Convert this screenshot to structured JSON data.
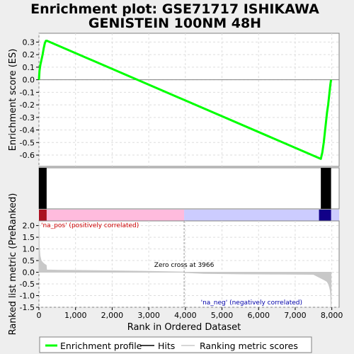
{
  "title_line1": "Enrichment plot: GSE71717 ISHIKAWA",
  "title_line2": "GENISTEIN 100NM 48H",
  "colors": {
    "es_line": "#00ff00",
    "hits": "#000000",
    "pos_band": "#ffbbdd",
    "neg_band": "#ccccff",
    "metric_fill": "#c8c8c8",
    "pos_label": "#cc0000",
    "neg_label": "#0000aa"
  },
  "chart_data": [
    {
      "type": "line",
      "ylabel": "Enrichment score (ES)",
      "ylim": [
        -0.69,
        0.37
      ],
      "yticks": [
        0.3,
        0.2,
        0.1,
        0.0,
        -0.1,
        -0.2,
        -0.3,
        -0.4,
        -0.5,
        -0.6
      ],
      "ytick_labels": [
        "0.3",
        "0.2",
        "0.1",
        "0.0",
        "-0.1",
        "-0.2",
        "-0.3",
        "-0.4",
        "-0.5",
        "-0.6"
      ],
      "xlim": [
        0,
        8200
      ],
      "grid": true,
      "series": [
        {
          "name": "Enrichment profile",
          "x": [
            0,
            15,
            40,
            70,
            100,
            130,
            160,
            190,
            220,
            7700,
            7740,
            7780,
            7810,
            7840,
            7870,
            7900,
            7930,
            7960,
            7980
          ],
          "y": [
            0.0,
            0.07,
            0.12,
            0.16,
            0.2,
            0.25,
            0.29,
            0.31,
            0.31,
            -0.63,
            -0.58,
            -0.5,
            -0.42,
            -0.34,
            -0.26,
            -0.2,
            -0.12,
            -0.04,
            0.0
          ]
        }
      ]
    },
    {
      "type": "bar",
      "series_name": "Hits",
      "hits_ranges": [
        [
          0,
          210
        ],
        [
          7700,
          7980
        ]
      ]
    },
    {
      "type": "area",
      "ylabel": "Ranked list metric (PreRanked)",
      "xlabel": "Rank in Ordered Dataset",
      "ylim": [
        -1.5,
        2.2
      ],
      "yticks": [
        2.0,
        1.5,
        1.0,
        0.5,
        0.0,
        -0.5,
        -1.0,
        -1.5
      ],
      "ytick_labels": [
        "2.0",
        "1.5",
        "1.0",
        "0.5",
        "0.0",
        "-0.5",
        "-1.0",
        "-1.5"
      ],
      "xticks": [
        0,
        1000,
        2000,
        3000,
        4000,
        5000,
        6000,
        7000,
        8000
      ],
      "xtick_labels": [
        "0",
        "1,000",
        "2,000",
        "3,000",
        "4,000",
        "5,000",
        "6,000",
        "7,000",
        "8,000"
      ],
      "xlim": [
        0,
        8200
      ],
      "x": [
        0,
        10,
        30,
        60,
        100,
        150,
        200,
        210,
        500,
        1000,
        2000,
        3000,
        3965,
        3966,
        4500,
        5500,
        6500,
        7500,
        7700,
        7760,
        7820,
        7870,
        7910,
        7940,
        7960,
        7970,
        7980
      ],
      "y": [
        2.2,
        1.1,
        0.7,
        0.5,
        0.42,
        0.35,
        0.3,
        0.1,
        0.09,
        0.08,
        0.06,
        0.04,
        0.01,
        -0.01,
        -0.05,
        -0.07,
        -0.08,
        -0.09,
        -0.25,
        -0.3,
        -0.35,
        -0.4,
        -0.5,
        -0.65,
        -0.8,
        -1.0,
        -1.45
      ],
      "zero_cross_rank": 3966,
      "zero_cross_label": "Zero cross at 3966",
      "pos_label": "'na_pos' (positively correlated)",
      "neg_label": "'na_neg' (negatively correlated)"
    }
  ],
  "legend": {
    "items": [
      "Enrichment profile",
      "Hits",
      "Ranking metric scores"
    ]
  }
}
